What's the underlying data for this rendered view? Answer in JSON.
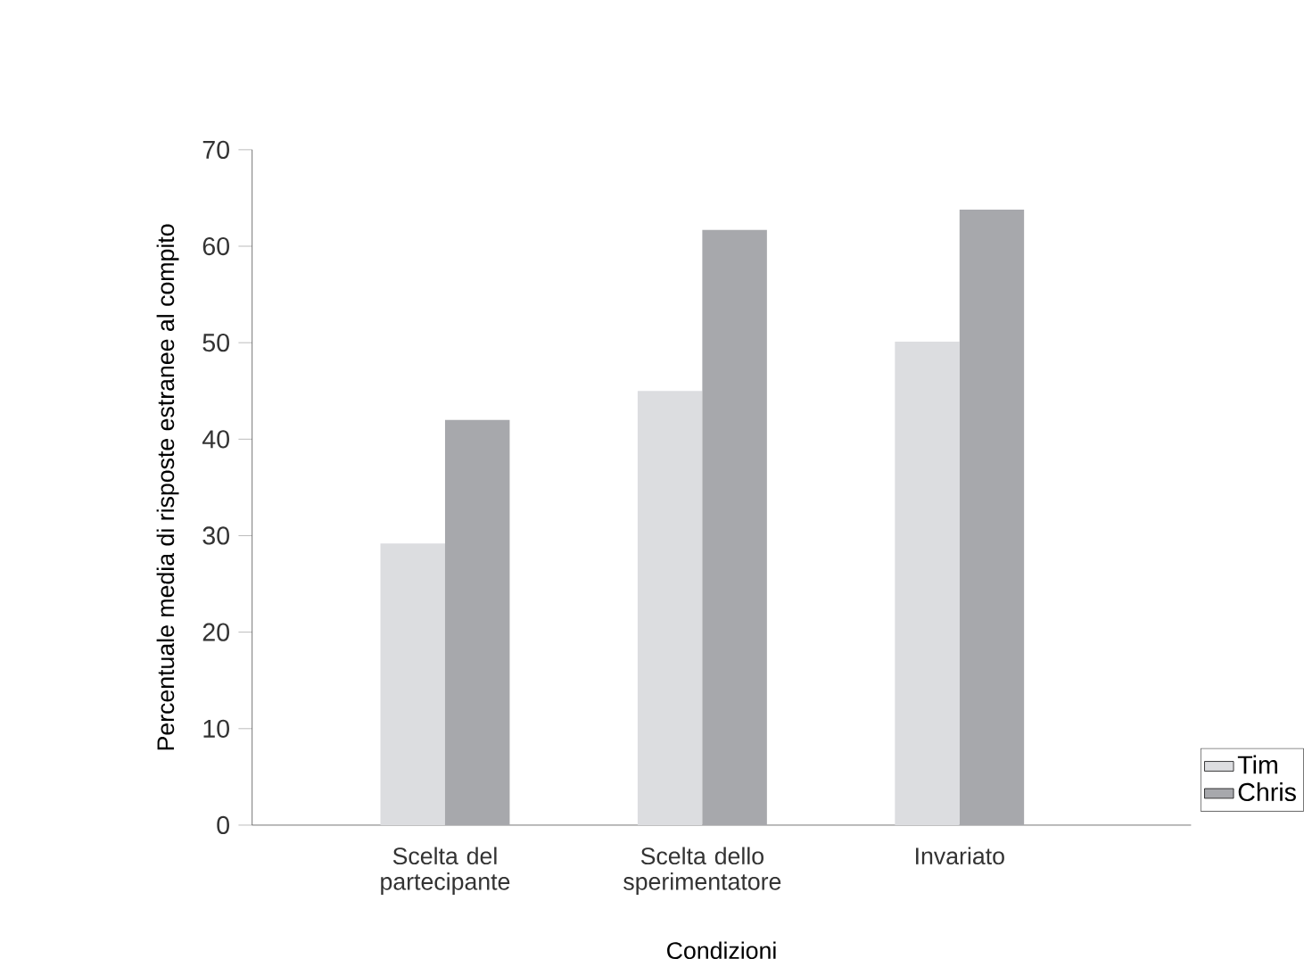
{
  "chart_data": {
    "type": "bar",
    "xlabel": "Condizioni",
    "ylabel": "Percentuale media di risposte estranee al compito",
    "categories": [
      "Scelta del partecipante",
      "Scelta dello sperimentatore",
      "Invariato"
    ],
    "series": [
      {
        "name": "Tim",
        "color": "#dcdde0",
        "values": [
          29.2,
          45.0,
          50.1
        ]
      },
      {
        "name": "Chris",
        "color": "#a7a8ac",
        "values": [
          42.0,
          61.7,
          63.8
        ]
      }
    ],
    "ylim": [
      0,
      70
    ],
    "yticks": [
      0,
      10,
      20,
      30,
      40,
      50,
      60,
      70
    ],
    "grid": false,
    "legend": "bottom right"
  }
}
